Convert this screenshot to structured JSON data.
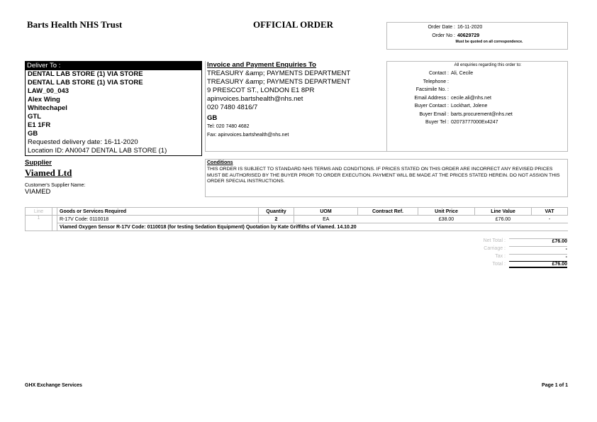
{
  "header": {
    "org": "Barts Health NHS Trust",
    "title": "OFFICIAL ORDER",
    "order_date_label": "Order Date :",
    "order_date": "16-11-2020",
    "order_no_label": "Order No :",
    "order_no": "40629729",
    "note": "Must be quoted on all correspondence."
  },
  "deliver": {
    "heading": "Deliver To :",
    "lines": [
      "DENTAL LAB STORE (1) VIA STORE",
      "DENTAL LAB STORE (1) VIA STORE",
      "LAW_00_043",
      "Alex Wing",
      "Whitechapel",
      "GTL",
      "E1 1FR",
      "GB"
    ],
    "requested": "Requested delivery date: 16-11-2020",
    "location": "Location ID: AN0047 DENTAL LAB STORE (1)"
  },
  "invoice": {
    "heading": "Invoice and Payment Enquiries To",
    "lines": [
      "TREASURY &amp; PAYMENTS DEPARTMENT",
      "TREASURY &amp; PAYMENTS DEPARTMENT",
      "9 PRESCOT ST., LONDON E1 8PR",
      "apinvoices.bartshealth@nhs.net",
      "020 7480 4816/7"
    ],
    "country": "GB",
    "tel": "Tel: 020 7480 4682",
    "fax": "Fax: apinvoices.bartshealth@nhs.net"
  },
  "enquiries": {
    "heading": "All enquiries regarding this order to:",
    "rows": [
      {
        "label": "Contact :",
        "value": "Ali, Cecile"
      },
      {
        "label": "Telephone :",
        "value": ""
      },
      {
        "label": "Facsimile No. :",
        "value": ""
      },
      {
        "label": "Email Address :",
        "value": "cecile.ali@nhs.net"
      },
      {
        "label": "Buyer Contact :",
        "value": "Lockhart, Jolene"
      },
      {
        "label": "Buyer Email :",
        "value": "barts.procurement@nhs.net"
      },
      {
        "label": "Buyer Tel :",
        "value": "02073777000Ex4247"
      }
    ]
  },
  "supplier": {
    "heading": "Supplier",
    "name": "Viamed Ltd",
    "cust_label": "Customer's Supplier Name:",
    "cust_name": "VIAMED"
  },
  "conditions": {
    "heading": "Conditions",
    "text": "THIS ORDER IS SUBJECT TO STANDARD NHS TERMS AND CONDITIONS. IF PRICES STATED ON THIS ORDER ARE INCORRECT ANY REVISED PRICES MUST BE AUTHORISED BY THE BUYER PRIOR TO ORDER EXECUTION. PAYMENT WILL BE MADE AT THE PRICES STATED HEREIN. DO NOT ASSIGN THIS ORDER SPECIAL INSTRUCTIONS."
  },
  "table": {
    "columns": [
      "Line",
      "Goods or Services Required",
      "Quantity",
      "UOM",
      "Contract Ref.",
      "Unit Price",
      "Line Value",
      "VAT"
    ],
    "rows": [
      {
        "line": "1",
        "item": "R-17V Code: 0110018",
        "quantity": "2",
        "uom": "EA",
        "contract": "",
        "unit_price": "£38.00",
        "line_value": "£76.00",
        "vat": "-",
        "description": "Viamed Oxygen Sensor R-17V Code: 0110018 (for testing Sedation Equipment) Quotation by Kate Griffiths of Viamed. 14.10.20"
      }
    ]
  },
  "totals": [
    {
      "label": "Net Total :",
      "value": "£76.00"
    },
    {
      "label": "Carriage :",
      "value": "-"
    },
    {
      "label": "Tax :",
      "value": "-"
    },
    {
      "label": "Total :",
      "value": "£76.00"
    }
  ],
  "footer": {
    "left": "GHX Exchange Services",
    "right": "Page 1 of 1"
  }
}
